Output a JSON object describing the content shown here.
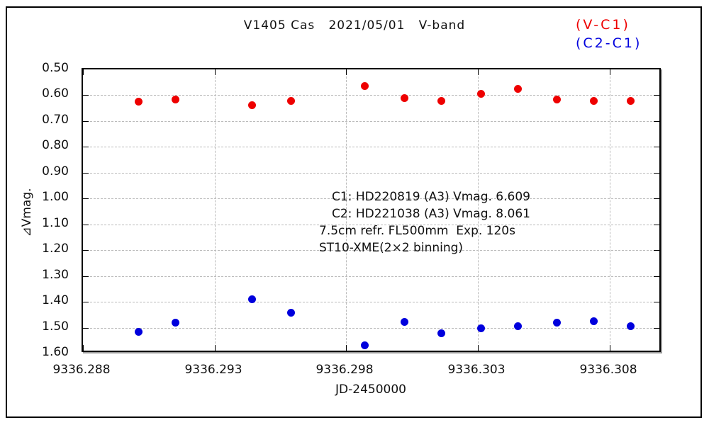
{
  "chart_data": {
    "type": "scatter",
    "title": "V1405 Cas   2021/05/01   V-band",
    "xlabel": "JD-2450000",
    "ylabel": "⊿Vmag.",
    "x": [
      9336.2901,
      9336.2915,
      9336.2944,
      9336.2959,
      9336.2987,
      9336.3002,
      9336.3016,
      9336.3031,
      9336.3045,
      9336.306,
      9336.3074,
      9336.3088
    ],
    "series": [
      {
        "name": "(V-C1)",
        "color": "#ee0000",
        "marker": "filled-circle",
        "values": [
          0.623,
          0.615,
          0.637,
          0.62,
          0.563,
          0.609,
          0.62,
          0.593,
          0.575,
          0.616,
          0.62,
          0.622
        ]
      },
      {
        "name": "(C2-C1)",
        "color": "#0000dd",
        "marker": "filled-circle",
        "values": [
          1.514,
          1.48,
          1.388,
          1.441,
          1.567,
          1.476,
          1.521,
          1.501,
          1.492,
          1.48,
          1.474,
          1.493
        ]
      }
    ],
    "xlim": [
      9336.288,
      9336.31
    ],
    "ylim": [
      0.5,
      1.6
    ],
    "y_axis_inverted": true,
    "xticks": {
      "values": [
        9336.288,
        9336.293,
        9336.298,
        9336.303,
        9336.308
      ],
      "labels": [
        "9336.288",
        "9336.293",
        "9336.298",
        "9336.303",
        "9336.308"
      ]
    },
    "yticks": {
      "values": [
        0.5,
        0.6,
        0.7,
        0.8,
        0.9,
        1.0,
        1.1,
        1.2,
        1.3,
        1.4,
        1.5,
        1.6
      ],
      "labels": [
        "0.50",
        "0.60",
        "0.70",
        "0.80",
        "0.90",
        "1.00",
        "1.10",
        "1.20",
        "1.30",
        "1.40",
        "1.50",
        "1.60"
      ]
    },
    "grid": {
      "show": true,
      "style": "dashed",
      "color": "#bbbbbb"
    },
    "legend": {
      "position": "top-right-outside",
      "entries": [
        {
          "label": "(V-C1)",
          "color": "#ee0000"
        },
        {
          "label": "(C2-C1)",
          "color": "#0000dd"
        }
      ]
    },
    "annotations": [
      {
        "text": "C1: HD220819 (A3) Vmag. 6.609",
        "indent": true
      },
      {
        "text": "C2: HD221038 (A3) Vmag. 8.061",
        "indent": true
      },
      {
        "text": "7.5cm refr. FL500mm  Exp. 120s",
        "indent": false
      },
      {
        "text": "ST10-XME(2×2 binning)",
        "indent": false
      }
    ]
  }
}
